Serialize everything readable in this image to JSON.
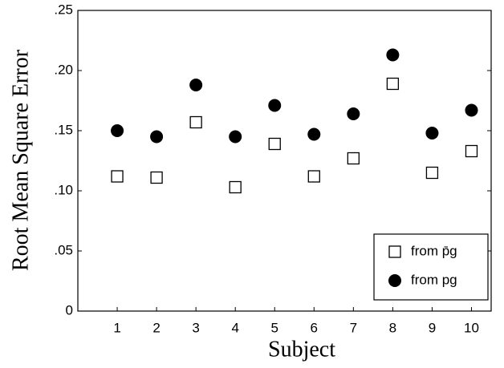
{
  "chart_data": {
    "type": "scatter",
    "x_label": "Subject",
    "y_label": "Root Mean Square  Error",
    "x": [
      1,
      2,
      3,
      4,
      5,
      6,
      7,
      8,
      9,
      10
    ],
    "xlim": [
      0,
      10.5
    ],
    "xticks": [
      1,
      2,
      3,
      4,
      5,
      6,
      7,
      8,
      9,
      10
    ],
    "ylim": [
      0,
      0.25
    ],
    "yticks": [
      0,
      {
        "value": 0.05,
        "label": ".05"
      },
      {
        "value": 0.1,
        "label": ".10"
      },
      {
        "value": 0.15,
        "label": ".15"
      },
      {
        "value": 0.2,
        "label": ".20"
      },
      {
        "value": 0.25,
        "label": ".25"
      }
    ],
    "series": [
      {
        "name": "from p̄g",
        "color": "#000000",
        "marker": "square",
        "values": [
          0.112,
          0.111,
          0.157,
          0.103,
          0.139,
          0.112,
          0.127,
          0.189,
          0.115,
          0.133
        ]
      },
      {
        "name": "from pg",
        "color": "#000000",
        "marker": "circle",
        "values": [
          0.15,
          0.145,
          0.188,
          0.145,
          0.171,
          0.147,
          0.164,
          0.213,
          0.148,
          0.167
        ]
      }
    ],
    "legend": "lower right"
  }
}
